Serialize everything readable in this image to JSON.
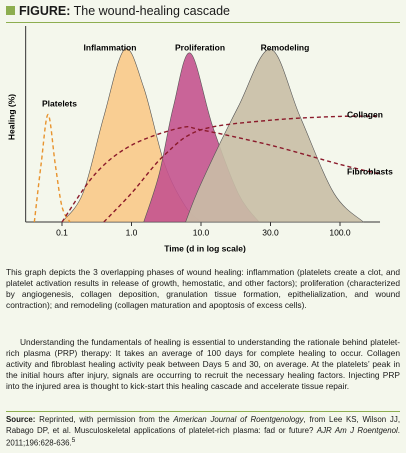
{
  "header": {
    "label": "FIGURE:",
    "title": "The wound-healing cascade"
  },
  "chart_data": {
    "type": "area",
    "ylabel": "Healing (%)",
    "xlabel": "Time (d in log scale)",
    "log_x": true,
    "ylim": [
      0,
      100
    ],
    "xlim": [
      0.03,
      200
    ],
    "xticks": [
      0.1,
      {
        "value": 1,
        "label": "1.0"
      },
      {
        "value": 10,
        "label": "10.0"
      },
      {
        "value": 30,
        "label": "30.0"
      },
      {
        "value": 100,
        "label": "100.0"
      }
    ],
    "series": [
      {
        "name": "Platelets",
        "style": "dashed",
        "color": "#e8932d",
        "x": [
          0.04,
          0.05,
          0.063,
          0.08,
          0.1,
          0.13
        ],
        "values": [
          0,
          30,
          56,
          30,
          8,
          0
        ]
      },
      {
        "name": "Inflammation",
        "style": "filled",
        "color": "#f9c98a",
        "x": [
          0.1,
          0.2,
          0.4,
          0.8,
          1.5,
          3,
          6,
          10
        ],
        "values": [
          0,
          15,
          55,
          90,
          70,
          30,
          8,
          0
        ]
      },
      {
        "name": "Proliferation",
        "style": "filled",
        "color": "#c4538f",
        "x": [
          1.5,
          2.5,
          4,
          7,
          12,
          18,
          25
        ],
        "values": [
          0,
          25,
          60,
          88,
          50,
          15,
          0
        ]
      },
      {
        "name": "Remodeling",
        "style": "filled",
        "color": "#c9bea6",
        "x": [
          6,
          10,
          18,
          30,
          50,
          90,
          150
        ],
        "values": [
          0,
          20,
          60,
          90,
          55,
          15,
          0
        ]
      },
      {
        "name": "Collagen",
        "style": "dashed",
        "color": "#8b1a2b",
        "x": [
          0.4,
          1,
          3,
          10,
          30,
          100,
          200
        ],
        "values": [
          0,
          15,
          35,
          48,
          53,
          55,
          55
        ]
      },
      {
        "name": "Fibroblasts",
        "style": "dashed",
        "color": "#8b1a2b",
        "x": [
          0.1,
          0.3,
          1,
          5,
          10,
          30,
          100,
          200
        ],
        "values": [
          0,
          25,
          40,
          49,
          48,
          40,
          30,
          25
        ]
      }
    ]
  },
  "caption": [
    "This graph depicts the 3 overlapping phases of wound healing: inflammation (platelets create a clot, and platelet activation results in release of growth, hemostatic, and other factors); proliferation (characterized by angiogenesis, collagen deposition, granulation tissue formation, epithelialization, and wound contraction); and remodeling (collagen maturation and apoptosis of excess cells).",
    "Understanding the fundamentals of healing is essential to understanding the rationale behind platelet-rich plasma (PRP) therapy: It takes an average of 100 days for complete healing to occur. Collagen activity and fibroblast healing activity peak between Days 5 and 30, on average. At the platelets’ peak in the initial hours after injury, signals are occurring to recruit the necessary healing factors. Injecting PRP into the injured area is thought to kick-start this healing cascade and accelerate tissue repair."
  ],
  "source": {
    "label": "Source:",
    "text1": " Reprinted, with permission from the ",
    "journal": "American Journal of Roentgenology",
    "text2": ", from Lee KS, Wilson JJ, Rabago DP, et al. Musculoskeletal applications of platelet-rich plasma: fad or future? ",
    "abbrev": "AJR Am J Roentgenol",
    "text3": ". 2011;196:628-636.",
    "ref": "5"
  }
}
